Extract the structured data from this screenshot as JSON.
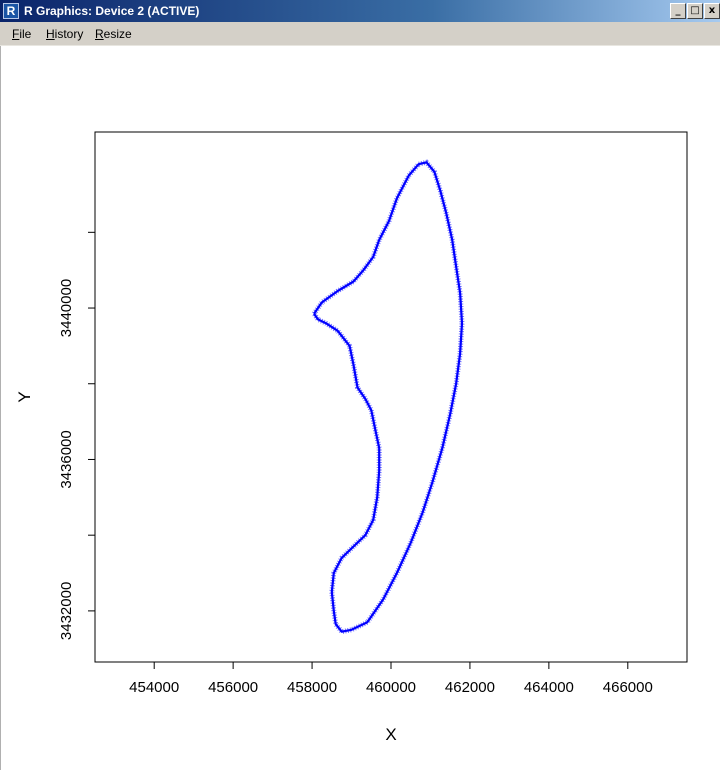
{
  "window": {
    "title": "R Graphics: Device 2 (ACTIVE)",
    "icon": "R",
    "buttons": {
      "minimize": "_",
      "maximize": "□",
      "close": "x"
    }
  },
  "menu": {
    "items": [
      {
        "label": "File"
      },
      {
        "label": "History"
      },
      {
        "label": "Resize"
      }
    ]
  },
  "chart_data": {
    "type": "line",
    "title": "",
    "xlabel": "X",
    "ylabel": "Y",
    "xlim": [
      452500,
      467500
    ],
    "ylim": [
      3430650,
      3444650
    ],
    "x_ticks": [
      454000,
      456000,
      458000,
      460000,
      462000,
      464000,
      466000
    ],
    "x_tick_labels": [
      "454000",
      "456000",
      "458000",
      "460000",
      "462000",
      "464000",
      "466000"
    ],
    "y_ticks": [
      3432000,
      3436000,
      3440000
    ],
    "y_tick_labels": [
      "3432000",
      "3436000",
      "3440000"
    ],
    "y_minor_ticks": [
      3434000,
      3438000,
      3442000
    ],
    "color": "#0000ff",
    "grid": false,
    "series": [
      {
        "x": [
          458050,
          458250,
          458650,
          459050,
          459300,
          459550,
          459700,
          459950,
          460150,
          460450,
          460700,
          460900,
          461100,
          461250,
          461400,
          461550,
          461650,
          461750,
          461800,
          461750,
          461650,
          461500,
          461300,
          461050,
          460800,
          460500,
          460150,
          459800,
          459400,
          459000,
          458750,
          458600,
          458550,
          458500,
          458550,
          458750,
          459050,
          459350,
          459550,
          459650,
          459700,
          459700,
          459600,
          459500,
          459350,
          459150,
          459050,
          458950,
          458650,
          458350,
          458150,
          458050
        ],
        "y": [
          3439850,
          3440150,
          3440450,
          3440700,
          3441000,
          3441350,
          3441800,
          3442300,
          3442900,
          3443500,
          3443800,
          3443850,
          3443600,
          3443100,
          3442500,
          3441800,
          3441100,
          3440400,
          3439600,
          3438800,
          3438000,
          3437200,
          3436300,
          3435400,
          3434600,
          3433800,
          3433000,
          3432300,
          3431700,
          3431500,
          3431450,
          3431650,
          3432000,
          3432500,
          3433000,
          3433400,
          3433700,
          3434000,
          3434400,
          3435000,
          3435700,
          3436300,
          3436800,
          3437300,
          3437600,
          3437900,
          3438500,
          3439000,
          3439400,
          3439600,
          3439700,
          3439850
        ]
      }
    ]
  }
}
